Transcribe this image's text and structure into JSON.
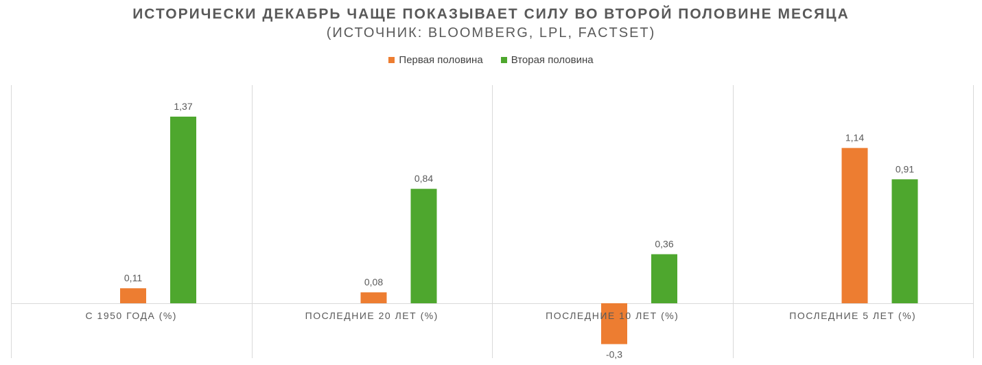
{
  "chart_data": {
    "type": "bar",
    "title": "ИСТОРИЧЕСКИ ДЕКАБРЬ ЧАЩЕ ПОКАЗЫВАЕТ СИЛУ ВО ВТОРОЙ ПОЛОВИНЕ МЕСЯЦА",
    "subtitle": "(ИСТОЧНИК: BLOOMBERG, LPL, FACTSET)",
    "categories": [
      "С 1950 ГОДА (%)",
      "ПОСЛЕДНИЕ 20 ЛЕТ (%)",
      "ПОСЛЕДНИЕ 10 ЛЕТ (%)",
      "ПОСЛЕДНИЕ 5 ЛЕТ (%)"
    ],
    "series": [
      {
        "name": "Первая половина",
        "color": "#ED7D31",
        "values": [
          0.11,
          0.08,
          -0.3,
          1.14
        ],
        "labels": [
          "0,11",
          "0,08",
          "-0,3",
          "1,14"
        ]
      },
      {
        "name": "Вторая половина",
        "color": "#4EA72E",
        "values": [
          1.37,
          0.84,
          0.36,
          0.91
        ],
        "labels": [
          "1,37",
          "0,84",
          "0,36",
          "0,91"
        ]
      }
    ],
    "ylim": [
      -0.4,
      1.6
    ],
    "legend": "top",
    "grid": false
  }
}
